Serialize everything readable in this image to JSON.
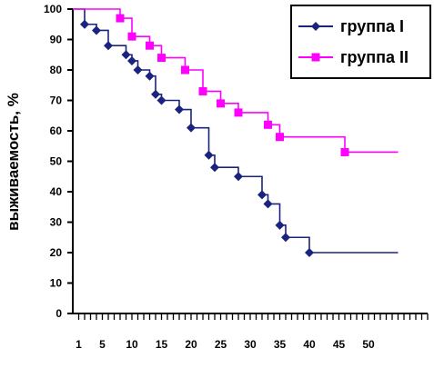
{
  "chart_data": {
    "type": "line",
    "step": true,
    "title": "",
    "xlabel": "",
    "ylabel": "выживаемость, %",
    "xlim": [
      0,
      60
    ],
    "ylim": [
      0,
      100
    ],
    "x_ticks": [
      1,
      5,
      10,
      15,
      20,
      25,
      30,
      35,
      40,
      45,
      50
    ],
    "x_tick_labels": [
      "1",
      "5",
      "10",
      "15",
      "20",
      "25",
      "30",
      "35",
      "40",
      "45",
      "50"
    ],
    "y_ticks": [
      0,
      10,
      20,
      30,
      40,
      50,
      60,
      70,
      80,
      90,
      100
    ],
    "y_tick_labels": [
      "0",
      "10",
      "20",
      "30",
      "40",
      "50",
      "60",
      "70",
      "80",
      "90",
      "100"
    ],
    "grid": false,
    "legend_position": "top-right",
    "series": [
      {
        "name": "группа I",
        "color": "#1a237e",
        "marker": "diamond",
        "x": [
          0,
          2,
          4,
          6,
          9,
          10,
          11,
          13,
          14,
          15,
          18,
          20,
          23,
          24,
          28,
          32,
          33,
          35,
          36,
          40,
          55
        ],
        "y": [
          100,
          95,
          93,
          88,
          85,
          83,
          80,
          78,
          72,
          70,
          67,
          61,
          52,
          48,
          45,
          39,
          36,
          29,
          25,
          20,
          20
        ],
        "markers_at": [
          1,
          2,
          3,
          4,
          5,
          6,
          7,
          8,
          9,
          10,
          11,
          12,
          13,
          14,
          15,
          16,
          17,
          18,
          19
        ]
      },
      {
        "name": "группа II",
        "color": "#ff00ff",
        "marker": "square",
        "x": [
          0,
          8,
          10,
          12,
          13,
          15,
          19,
          22,
          25,
          28,
          33,
          35,
          46,
          55
        ],
        "y": [
          100,
          97,
          91,
          91,
          88,
          84,
          80,
          73,
          69,
          66,
          62,
          58,
          53,
          53
        ],
        "markers_at": [
          1,
          2,
          4,
          5,
          6,
          7,
          8,
          9,
          10,
          11,
          12
        ]
      }
    ]
  }
}
